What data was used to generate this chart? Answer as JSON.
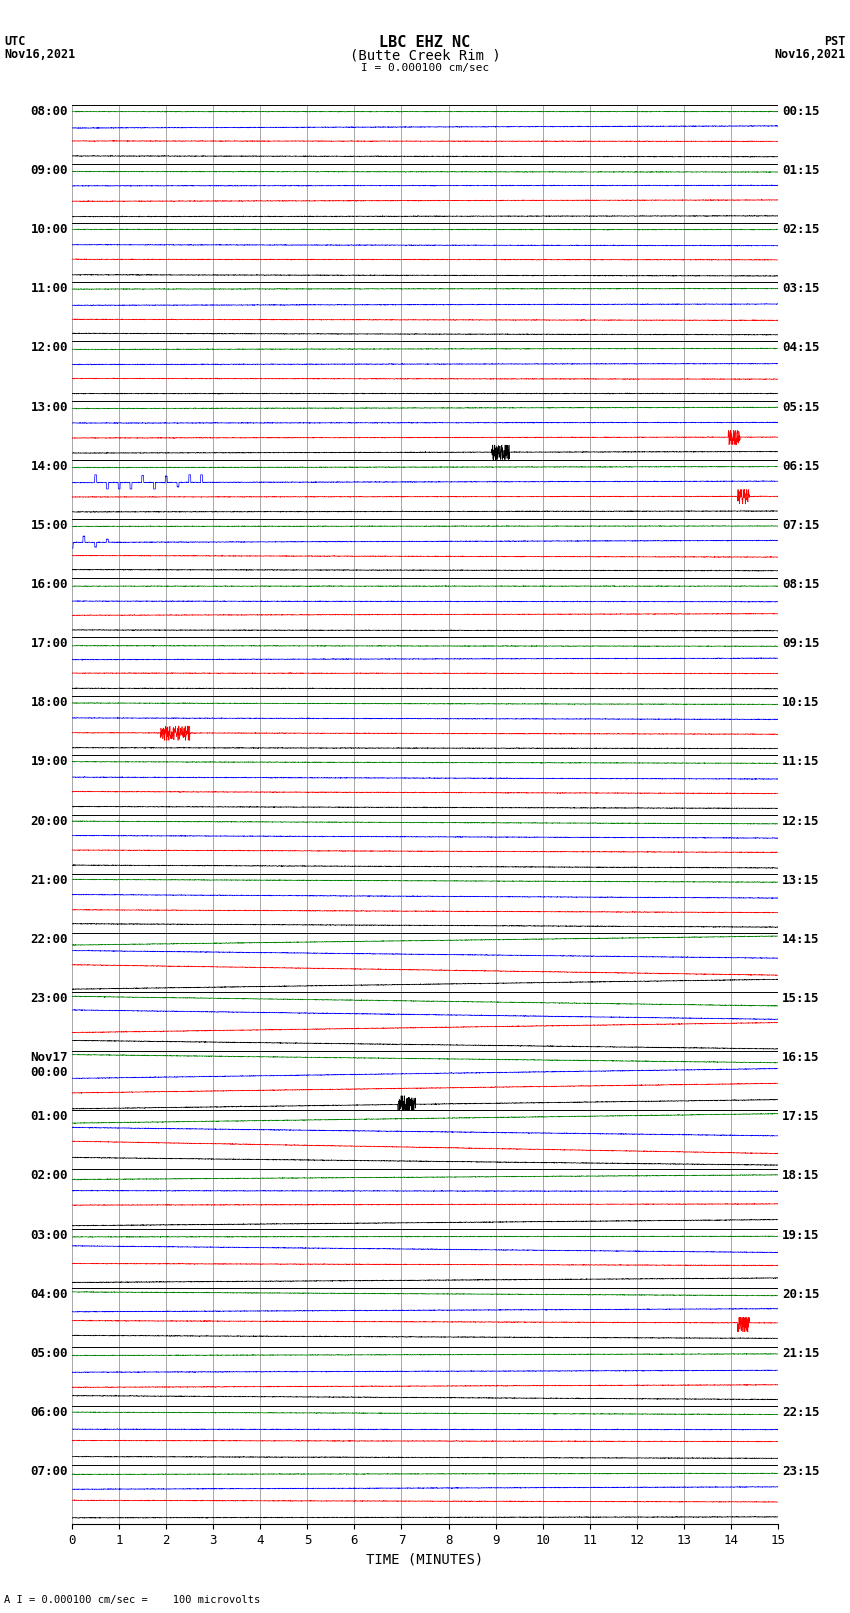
{
  "title_line1": "LBC EHZ NC",
  "title_line2": "(Butte Creek Rim )",
  "scale_label": "I = 0.000100 cm/sec",
  "bottom_label": "A I = 0.000100 cm/sec =    100 microvolts",
  "utc_label": "UTC\nNov16,2021",
  "pst_label": "PST\nNov16,2021",
  "xlabel": "TIME (MINUTES)",
  "left_times": [
    "08:00",
    "09:00",
    "10:00",
    "11:00",
    "12:00",
    "13:00",
    "14:00",
    "15:00",
    "16:00",
    "17:00",
    "18:00",
    "19:00",
    "20:00",
    "21:00",
    "22:00",
    "23:00",
    "Nov17\n00:00",
    "01:00",
    "02:00",
    "03:00",
    "04:00",
    "05:00",
    "06:00",
    "07:00"
  ],
  "right_times": [
    "00:15",
    "01:15",
    "02:15",
    "03:15",
    "04:15",
    "05:15",
    "06:15",
    "07:15",
    "08:15",
    "09:15",
    "10:15",
    "11:15",
    "12:15",
    "13:15",
    "14:15",
    "15:15",
    "16:15",
    "17:15",
    "18:15",
    "19:15",
    "20:15",
    "21:15",
    "22:15",
    "23:15"
  ],
  "n_rows": 24,
  "n_traces_per_row": 4,
  "colors": [
    "black",
    "red",
    "blue",
    "green"
  ],
  "time_min": 0,
  "time_max": 15,
  "bg_color": "white",
  "grid_color": "#999999",
  "font_size_title": 11,
  "font_size_labels": 9,
  "font_size_ticks": 9,
  "font_size_row_labels": 9
}
